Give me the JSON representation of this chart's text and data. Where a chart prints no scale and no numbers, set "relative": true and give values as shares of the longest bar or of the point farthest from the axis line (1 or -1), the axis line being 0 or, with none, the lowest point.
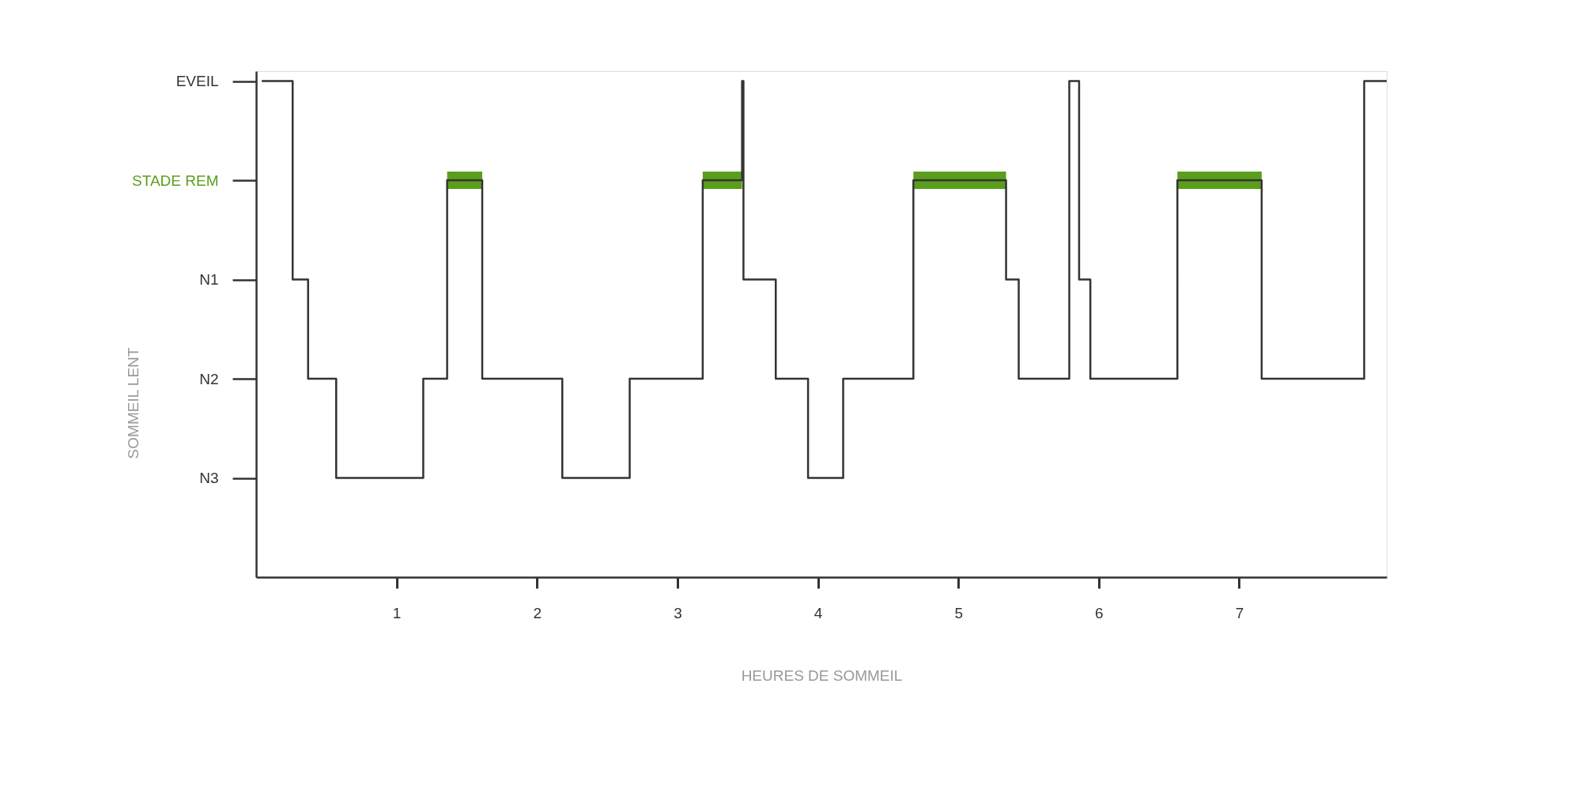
{
  "chart_data": {
    "type": "step",
    "xlabel": "HEURES DE SOMMEIL",
    "annotations": [
      "SOMMEIL LENT"
    ],
    "relative": true,
    "xlim": [
      0,
      8.05
    ],
    "xticks": [
      1,
      2,
      3,
      4,
      5,
      6,
      7
    ],
    "y_categories": [
      "EVEIL",
      "STADE REM",
      "N1",
      "N2",
      "N3"
    ],
    "grid": false,
    "marker": "none",
    "line_style": "solid",
    "series": [
      {
        "color": "#333333",
        "x": [
          0.04,
          0.26,
          0.37,
          0.57,
          1.19,
          1.36,
          1.61,
          2.18,
          2.66,
          3.18,
          3.46,
          3.47,
          3.7,
          3.93,
          4.18,
          4.68,
          5.34,
          5.43,
          5.79,
          5.86,
          5.94,
          6.56,
          7.16,
          7.89,
          8.05
        ],
        "values": [
          1,
          0.6,
          0.4,
          0.2,
          0.4,
          0.8,
          0.4,
          0.2,
          0.4,
          0.8,
          1,
          0.6,
          0.4,
          0.2,
          0.4,
          0.8,
          0.6,
          0.4,
          1,
          0.6,
          0.4,
          0.8,
          0.4,
          1,
          1
        ]
      },
      {
        "color": "#5a9e1c",
        "x": [
          1.36,
          1.61
        ],
        "values": [
          0.8,
          0.8
        ]
      },
      {
        "color": "#5a9e1c",
        "x": [
          3.18,
          3.46
        ],
        "values": [
          0.8,
          0.8
        ]
      },
      {
        "color": "#5a9e1c",
        "x": [
          4.68,
          5.34
        ],
        "values": [
          0.8,
          0.8
        ]
      },
      {
        "color": "#5a9e1c",
        "x": [
          6.56,
          7.16
        ],
        "values": [
          0.8,
          0.8
        ]
      }
    ]
  }
}
